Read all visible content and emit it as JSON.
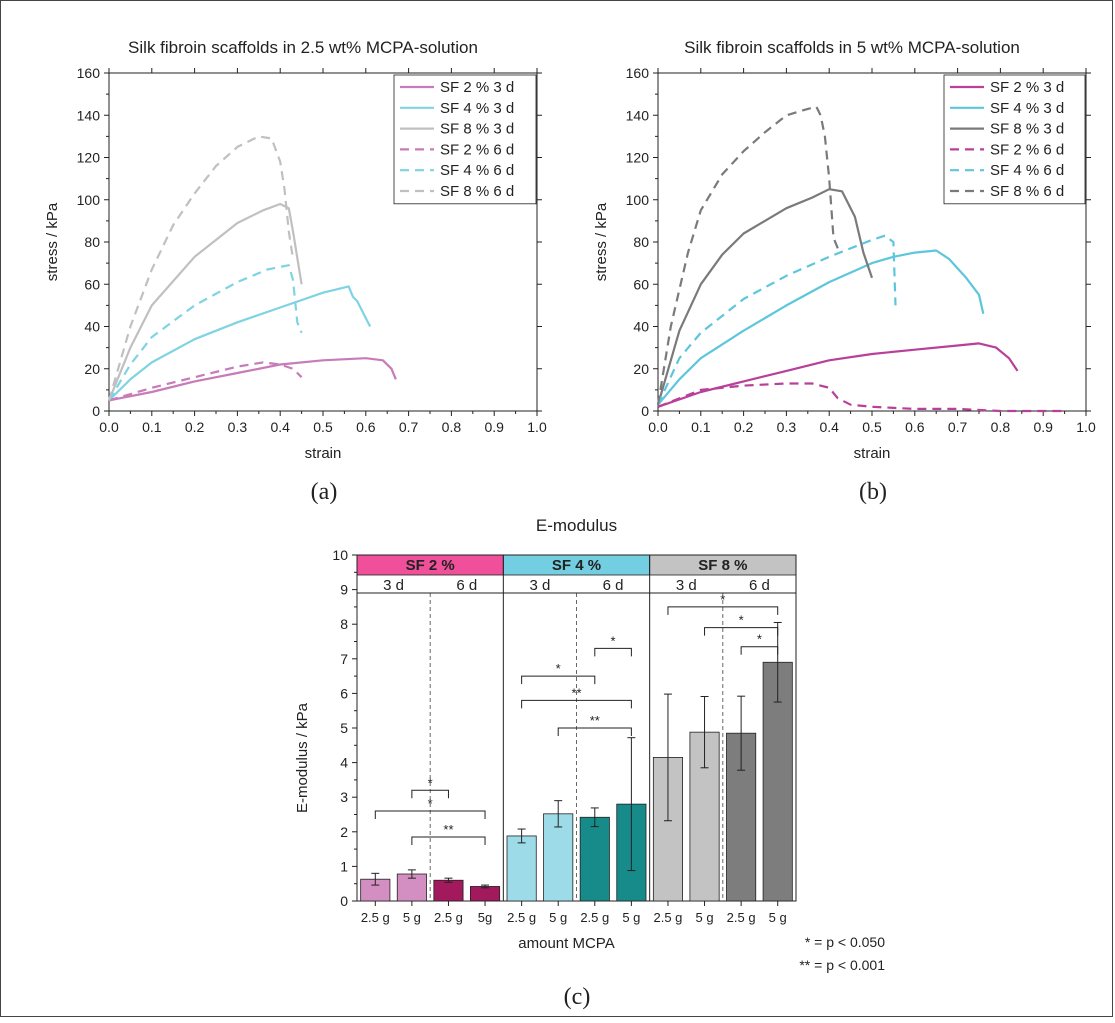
{
  "figure": {
    "captions": {
      "a": "(a)",
      "b": "(b)",
      "c": "(c)"
    },
    "pvalues": [
      "* = p < 0.050",
      "** = p < 0.001"
    ]
  },
  "colors": {
    "sf2_light": "#d48fc2",
    "sf2_dark": "#a2195e",
    "sf2_line": "#c77bb9",
    "sf2_line_b": "#b8409a",
    "sf4_light": "#9ddbe8",
    "sf4_dark": "#178a8a",
    "sf4_line": "#7fd3e2",
    "sf4_line_b": "#5ec6dc",
    "sf8_light": "#c3c3c3",
    "sf8_dark": "#7d7d7d",
    "sf8_line": "#c0c0c0",
    "sf8_line_b": "#7a7a7a",
    "header_sf2": "#f0509a",
    "header_sf4": "#72cee0",
    "header_sf8": "#c3c3c3"
  },
  "chart_data": [
    {
      "id": "a",
      "type": "line",
      "title": "Silk fibroin scaffolds in 2.5 wt% MCPA-solution",
      "xlabel": "strain",
      "ylabel": "stress / kPa",
      "xlim": [
        0.0,
        1.0
      ],
      "ylim": [
        0,
        160
      ],
      "xticks": [
        "0.0",
        "0.1",
        "0.2",
        "0.3",
        "0.4",
        "0.5",
        "0.6",
        "0.7",
        "0.8",
        "0.9",
        "1.0"
      ],
      "yticks": [
        "0",
        "20",
        "40",
        "60",
        "80",
        "100",
        "120",
        "140",
        "160"
      ],
      "legend": "top-right",
      "series": [
        {
          "name": "SF 2 % 3 d",
          "color": "#c77bb9",
          "dash": false,
          "points": [
            [
              0,
              5
            ],
            [
              0.1,
              9
            ],
            [
              0.2,
              14
            ],
            [
              0.3,
              18
            ],
            [
              0.4,
              22
            ],
            [
              0.5,
              24
            ],
            [
              0.6,
              25
            ],
            [
              0.64,
              24
            ],
            [
              0.66,
              20
            ],
            [
              0.67,
              15
            ]
          ]
        },
        {
          "name": "SF 4 % 3 d",
          "color": "#7fd3e2",
          "dash": false,
          "points": [
            [
              0,
              5
            ],
            [
              0.05,
              15
            ],
            [
              0.1,
              23
            ],
            [
              0.2,
              34
            ],
            [
              0.3,
              42
            ],
            [
              0.4,
              49
            ],
            [
              0.5,
              56
            ],
            [
              0.56,
              59
            ],
            [
              0.57,
              54
            ],
            [
              0.58,
              52
            ],
            [
              0.6,
              44
            ],
            [
              0.61,
              40
            ]
          ]
        },
        {
          "name": "SF 8 % 3 d",
          "color": "#c0c0c0",
          "dash": false,
          "points": [
            [
              0,
              5
            ],
            [
              0.05,
              30
            ],
            [
              0.1,
              50
            ],
            [
              0.2,
              73
            ],
            [
              0.3,
              89
            ],
            [
              0.36,
              95
            ],
            [
              0.4,
              98
            ],
            [
              0.42,
              96
            ],
            [
              0.43,
              85
            ],
            [
              0.45,
              60
            ]
          ]
        },
        {
          "name": "SF 2 % 6 d",
          "color": "#c77bb9",
          "dash": true,
          "points": [
            [
              0,
              5
            ],
            [
              0.1,
              11
            ],
            [
              0.2,
              16
            ],
            [
              0.3,
              21
            ],
            [
              0.36,
              23
            ],
            [
              0.4,
              22
            ],
            [
              0.43,
              20
            ],
            [
              0.45,
              16
            ]
          ]
        },
        {
          "name": "SF 4 % 6 d",
          "color": "#7fd3e2",
          "dash": true,
          "points": [
            [
              0,
              5
            ],
            [
              0.05,
              22
            ],
            [
              0.1,
              35
            ],
            [
              0.2,
              50
            ],
            [
              0.3,
              61
            ],
            [
              0.37,
              67
            ],
            [
              0.42,
              69
            ],
            [
              0.43,
              62
            ],
            [
              0.44,
              42
            ],
            [
              0.45,
              37
            ]
          ]
        },
        {
          "name": "SF 8 % 6 d",
          "color": "#c0c0c0",
          "dash": true,
          "points": [
            [
              0,
              5
            ],
            [
              0.05,
              40
            ],
            [
              0.1,
              67
            ],
            [
              0.15,
              88
            ],
            [
              0.2,
              103
            ],
            [
              0.25,
              116
            ],
            [
              0.3,
              125
            ],
            [
              0.35,
              130
            ],
            [
              0.38,
              129
            ],
            [
              0.4,
              118
            ],
            [
              0.41,
              105
            ],
            [
              0.42,
              85
            ],
            [
              0.43,
              72
            ]
          ]
        }
      ]
    },
    {
      "id": "b",
      "type": "line",
      "title": "Silk fibroin scaffolds in 5 wt% MCPA-solution",
      "xlabel": "strain",
      "ylabel": "stress / kPa",
      "xlim": [
        0.0,
        1.0
      ],
      "ylim": [
        0,
        160
      ],
      "xticks": [
        "0.0",
        "0.1",
        "0.2",
        "0.3",
        "0.4",
        "0.5",
        "0.6",
        "0.7",
        "0.8",
        "0.9",
        "1.0"
      ],
      "yticks": [
        "0",
        "20",
        "40",
        "60",
        "80",
        "100",
        "120",
        "140",
        "160"
      ],
      "legend": "top-right",
      "series": [
        {
          "name": "SF 2 % 3 d",
          "color": "#b8409a",
          "dash": false,
          "points": [
            [
              0,
              2
            ],
            [
              0.1,
              9
            ],
            [
              0.2,
              14
            ],
            [
              0.3,
              19
            ],
            [
              0.4,
              24
            ],
            [
              0.5,
              27
            ],
            [
              0.6,
              29
            ],
            [
              0.7,
              31
            ],
            [
              0.75,
              32
            ],
            [
              0.79,
              30
            ],
            [
              0.82,
              25
            ],
            [
              0.84,
              19
            ]
          ]
        },
        {
          "name": "SF 4 % 3 d",
          "color": "#5ec6dc",
          "dash": false,
          "points": [
            [
              0,
              3
            ],
            [
              0.05,
              15
            ],
            [
              0.1,
              25
            ],
            [
              0.2,
              38
            ],
            [
              0.3,
              50
            ],
            [
              0.4,
              61
            ],
            [
              0.5,
              70
            ],
            [
              0.55,
              73
            ],
            [
              0.6,
              75
            ],
            [
              0.65,
              76
            ],
            [
              0.68,
              72
            ],
            [
              0.72,
              63
            ],
            [
              0.75,
              55
            ],
            [
              0.76,
              46
            ]
          ]
        },
        {
          "name": "SF 8 % 3 d",
          "color": "#7a7a7a",
          "dash": false,
          "points": [
            [
              0,
              3
            ],
            [
              0.05,
              38
            ],
            [
              0.1,
              60
            ],
            [
              0.15,
              74
            ],
            [
              0.2,
              84
            ],
            [
              0.3,
              96
            ],
            [
              0.36,
              101
            ],
            [
              0.4,
              105
            ],
            [
              0.43,
              104
            ],
            [
              0.46,
              92
            ],
            [
              0.48,
              75
            ],
            [
              0.5,
              63
            ]
          ]
        },
        {
          "name": "SF 2 % 6 d",
          "color": "#b8409a",
          "dash": true,
          "points": [
            [
              0,
              2
            ],
            [
              0.1,
              10
            ],
            [
              0.2,
              12
            ],
            [
              0.3,
              13
            ],
            [
              0.36,
              13
            ],
            [
              0.4,
              11
            ],
            [
              0.42,
              6
            ],
            [
              0.45,
              3
            ],
            [
              0.5,
              2
            ],
            [
              0.6,
              1
            ],
            [
              0.7,
              1
            ],
            [
              0.8,
              0
            ],
            [
              0.95,
              0
            ]
          ]
        },
        {
          "name": "SF 4 % 6 d",
          "color": "#5ec6dc",
          "dash": true,
          "points": [
            [
              0,
              3
            ],
            [
              0.05,
              25
            ],
            [
              0.1,
              37
            ],
            [
              0.2,
              53
            ],
            [
              0.3,
              64
            ],
            [
              0.4,
              73
            ],
            [
              0.5,
              81
            ],
            [
              0.53,
              83
            ],
            [
              0.55,
              80
            ],
            [
              0.555,
              50
            ]
          ]
        },
        {
          "name": "SF 8 % 6 d",
          "color": "#7a7a7a",
          "dash": true,
          "points": [
            [
              0,
              3
            ],
            [
              0.03,
              40
            ],
            [
              0.07,
              75
            ],
            [
              0.1,
              95
            ],
            [
              0.15,
              112
            ],
            [
              0.2,
              123
            ],
            [
              0.25,
              132
            ],
            [
              0.3,
              140
            ],
            [
              0.35,
              143
            ],
            [
              0.37,
              144
            ],
            [
              0.38,
              140
            ],
            [
              0.39,
              130
            ],
            [
              0.4,
              110
            ],
            [
              0.41,
              82
            ],
            [
              0.42,
              77
            ]
          ]
        }
      ]
    },
    {
      "id": "c",
      "type": "bar",
      "title": "E-modulus",
      "xlabel": "amount MCPA",
      "ylabel": "E-modulus / kPa",
      "ylim": [
        0,
        10
      ],
      "yticks": [
        "0",
        "1",
        "2",
        "3",
        "4",
        "5",
        "6",
        "7",
        "8",
        "9",
        "10"
      ],
      "groups": [
        {
          "name": "SF 2 %",
          "header_color": "#f0509a",
          "days": [
            "3 d",
            "6 d"
          ]
        },
        {
          "name": "SF 4 %",
          "header_color": "#72cee0",
          "days": [
            "3 d",
            "6 d"
          ]
        },
        {
          "name": "SF 8 %",
          "header_color": "#c3c3c3",
          "days": [
            "3 d",
            "6 d"
          ]
        }
      ],
      "categories": [
        "2.5 g",
        "5 g",
        "2.5 g",
        "5g",
        "2.5 g",
        "5 g",
        "2.5 g",
        "5 g",
        "2.5 g",
        "5 g",
        "2.5 g",
        "5 g"
      ],
      "values": [
        0.63,
        0.78,
        0.6,
        0.42,
        1.88,
        2.52,
        2.42,
        2.8,
        4.15,
        4.88,
        4.85,
        6.9
      ],
      "errors": [
        0.17,
        0.12,
        0.06,
        0.04,
        0.2,
        0.38,
        0.27,
        1.92,
        1.83,
        1.03,
        1.07,
        1.15
      ],
      "colors": [
        "#d48fc2",
        "#d48fc2",
        "#a2195e",
        "#a2195e",
        "#9ddbe8",
        "#9ddbe8",
        "#178a8a",
        "#178a8a",
        "#c3c3c3",
        "#c3c3c3",
        "#7d7d7d",
        "#7d7d7d"
      ],
      "significance": [
        {
          "from": 1,
          "to": 2,
          "y": 3.2,
          "label": "*"
        },
        {
          "from": 0,
          "to": 3,
          "y": 2.6,
          "label": "*"
        },
        {
          "from": 1,
          "to": 3,
          "y": 1.85,
          "label": "**"
        },
        {
          "from": 6,
          "to": 7,
          "y": 7.3,
          "label": "*"
        },
        {
          "from": 4,
          "to": 6,
          "y": 6.5,
          "label": "*"
        },
        {
          "from": 4,
          "to": 7,
          "y": 5.8,
          "label": "**"
        },
        {
          "from": 5,
          "to": 7,
          "y": 5.0,
          "label": "**"
        },
        {
          "from": 8,
          "to": 11,
          "y": 8.5,
          "label": "*"
        },
        {
          "from": 9,
          "to": 11,
          "y": 7.9,
          "label": "*"
        },
        {
          "from": 10,
          "to": 11,
          "y": 7.35,
          "label": "*"
        }
      ]
    }
  ]
}
